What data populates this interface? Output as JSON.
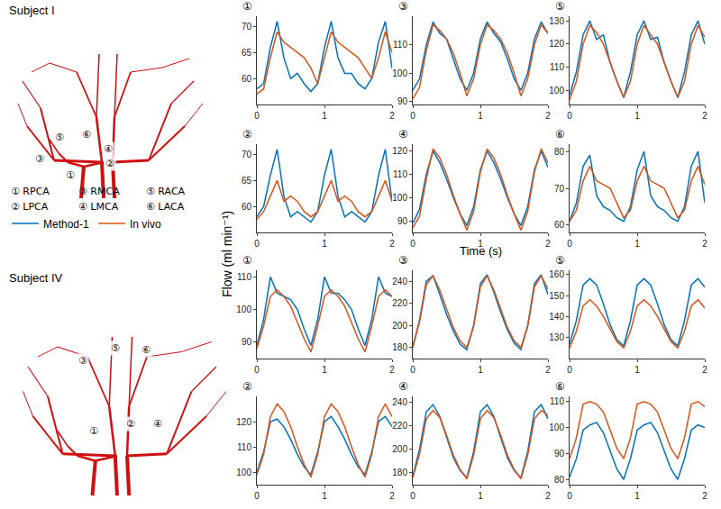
{
  "chart_data": [
    {
      "type": "line",
      "title": "①",
      "x": [
        0,
        0.1,
        0.2,
        0.3,
        0.4,
        0.5,
        0.6,
        0.7,
        0.8,
        0.9,
        1,
        1.1,
        1.2,
        1.3,
        1.4,
        1.5,
        1.6,
        1.7,
        1.8,
        1.9,
        2
      ],
      "xlim": [
        0,
        2
      ],
      "xticks": [
        0,
        1,
        2
      ],
      "ylim": [
        55,
        72
      ],
      "yticks": [
        60,
        65,
        70
      ],
      "grid": false,
      "series": [
        {
          "name": "Method-1",
          "color": "#0072BD",
          "values": [
            58,
            59,
            66,
            71,
            64,
            60,
            61,
            59,
            57.5,
            59,
            66,
            71,
            64,
            61,
            61,
            59,
            58,
            60,
            67,
            71,
            62
          ]
        },
        {
          "name": "In vivo",
          "color": "#D95319",
          "values": [
            57,
            58,
            64,
            69,
            67,
            66,
            65,
            64,
            62,
            59,
            64,
            69,
            67,
            66,
            65,
            64,
            62,
            60,
            64,
            69,
            65
          ]
        }
      ]
    },
    {
      "type": "line",
      "title": "②",
      "x": [
        0,
        0.1,
        0.2,
        0.3,
        0.4,
        0.5,
        0.6,
        0.7,
        0.8,
        0.9,
        1,
        1.1,
        1.2,
        1.3,
        1.4,
        1.5,
        1.6,
        1.7,
        1.8,
        1.9,
        2
      ],
      "xlim": [
        0,
        2
      ],
      "xticks": [
        0,
        1,
        2
      ],
      "ylim": [
        55,
        72
      ],
      "yticks": [
        60,
        65,
        70
      ],
      "grid": false,
      "series": [
        {
          "name": "Method-1",
          "color": "#0072BD",
          "values": [
            58,
            60,
            66,
            71,
            62,
            58,
            59,
            58,
            57,
            59,
            66,
            71,
            62,
            58,
            59,
            58,
            57,
            59,
            66,
            71,
            61
          ]
        },
        {
          "name": "In vivo",
          "color": "#D95319",
          "values": [
            57.5,
            59,
            62,
            65,
            61,
            62,
            61,
            59,
            58,
            59,
            62,
            65,
            61,
            62,
            61,
            59,
            58,
            59,
            62,
            65,
            61
          ]
        }
      ]
    },
    {
      "type": "line",
      "title": "③",
      "x": [
        0,
        0.1,
        0.2,
        0.3,
        0.4,
        0.5,
        0.6,
        0.7,
        0.8,
        0.9,
        1,
        1.1,
        1.2,
        1.3,
        1.4,
        1.5,
        1.6,
        1.7,
        1.8,
        1.9,
        2
      ],
      "xlim": [
        0,
        2
      ],
      "xticks": [
        0,
        1,
        2
      ],
      "ylim": [
        89,
        120
      ],
      "yticks": [
        90,
        100,
        110
      ],
      "grid": false,
      "series": [
        {
          "name": "Method-1",
          "color": "#0072BD",
          "values": [
            94,
            98,
            110,
            118,
            114,
            112,
            105,
            98,
            94,
            100,
            112,
            118,
            114,
            111,
            105,
            98,
            94,
            100,
            112,
            118,
            114
          ]
        },
        {
          "name": "In vivo",
          "color": "#D95319",
          "values": [
            91,
            95,
            108,
            117,
            115,
            112,
            107,
            100,
            92,
            98,
            110,
            117,
            115,
            112,
            107,
            100,
            92,
            98,
            110,
            117,
            114
          ]
        }
      ]
    },
    {
      "type": "line",
      "title": "④",
      "x": [
        0,
        0.1,
        0.2,
        0.3,
        0.4,
        0.5,
        0.6,
        0.7,
        0.8,
        0.9,
        1,
        1.1,
        1.2,
        1.3,
        1.4,
        1.5,
        1.6,
        1.7,
        1.8,
        1.9,
        2
      ],
      "xlim": [
        0,
        2
      ],
      "xticks": [
        0,
        1,
        2
      ],
      "ylim": [
        85,
        123
      ],
      "yticks": [
        90,
        100,
        110,
        120
      ],
      "grid": false,
      "series": [
        {
          "name": "Method-1",
          "color": "#0072BD",
          "values": [
            89,
            95,
            110,
            120,
            115,
            108,
            100,
            93,
            88,
            96,
            112,
            120,
            115,
            108,
            100,
            93,
            88,
            96,
            112,
            120,
            113
          ]
        },
        {
          "name": "In vivo",
          "color": "#D95319",
          "values": [
            87,
            92,
            108,
            121,
            117,
            110,
            101,
            93,
            86,
            94,
            111,
            121,
            117,
            110,
            101,
            93,
            86,
            94,
            111,
            121,
            115
          ]
        }
      ]
    },
    {
      "type": "line",
      "title": "⑤",
      "x": [
        0,
        0.1,
        0.2,
        0.3,
        0.4,
        0.5,
        0.6,
        0.7,
        0.8,
        0.9,
        1,
        1.1,
        1.2,
        1.3,
        1.4,
        1.5,
        1.6,
        1.7,
        1.8,
        1.9,
        2
      ],
      "xlim": [
        0,
        2
      ],
      "xticks": [
        0,
        1,
        2
      ],
      "ylim": [
        94,
        132
      ],
      "yticks": [
        100,
        110,
        120,
        130
      ],
      "grid": false,
      "series": [
        {
          "name": "Method-1",
          "color": "#0072BD",
          "values": [
            98,
            108,
            124,
            130,
            122,
            124,
            112,
            104,
            97,
            108,
            124,
            130,
            122,
            123,
            112,
            104,
            97,
            108,
            124,
            130,
            120
          ]
        },
        {
          "name": "In vivo",
          "color": "#D95319",
          "values": [
            96,
            104,
            120,
            128,
            125,
            120,
            112,
            104,
            97,
            104,
            120,
            128,
            124,
            120,
            112,
            104,
            97,
            104,
            120,
            128,
            123
          ]
        }
      ]
    },
    {
      "type": "line",
      "title": "⑥",
      "x": [
        0,
        0.1,
        0.2,
        0.3,
        0.4,
        0.5,
        0.6,
        0.7,
        0.8,
        0.9,
        1,
        1.1,
        1.2,
        1.3,
        1.4,
        1.5,
        1.6,
        1.7,
        1.8,
        1.9,
        2
      ],
      "xlim": [
        0,
        2
      ],
      "xticks": [
        0,
        1,
        2
      ],
      "ylim": [
        58,
        82
      ],
      "yticks": [
        60,
        70,
        80
      ],
      "grid": false,
      "series": [
        {
          "name": "Method-1",
          "color": "#0072BD",
          "values": [
            61,
            66,
            76,
            79,
            68,
            65,
            64,
            62,
            61,
            65,
            75,
            80,
            68,
            65,
            64,
            62,
            61,
            65,
            76,
            80,
            66
          ]
        },
        {
          "name": "In vivo",
          "color": "#D95319",
          "values": [
            61,
            64,
            72,
            76,
            72,
            71,
            70,
            66,
            62,
            64,
            72,
            76,
            72,
            71,
            70,
            66,
            62,
            64,
            72,
            76,
            71
          ]
        }
      ]
    },
    {
      "type": "line",
      "title": "①",
      "x": [
        0,
        0.1,
        0.2,
        0.3,
        0.4,
        0.5,
        0.6,
        0.7,
        0.8,
        0.9,
        1,
        1.1,
        1.2,
        1.3,
        1.4,
        1.5,
        1.6,
        1.7,
        1.8,
        1.9,
        2
      ],
      "xlim": [
        0,
        2
      ],
      "xticks": [
        0,
        1,
        2
      ],
      "ylim": [
        85,
        112
      ],
      "yticks": [
        90,
        100,
        110
      ],
      "grid": false,
      "series": [
        {
          "name": "Method-1",
          "color": "#0072BD",
          "values": [
            89,
            97,
            110,
            105,
            104,
            103,
            100,
            94,
            89,
            97,
            110,
            105,
            105,
            103,
            100,
            94,
            89,
            97,
            110,
            105,
            104
          ]
        },
        {
          "name": "In vivo",
          "color": "#D95319",
          "values": [
            88,
            95,
            104,
            106,
            104,
            101,
            96,
            91,
            87,
            95,
            104,
            106,
            104,
            101,
            96,
            91,
            87,
            95,
            104,
            106,
            104
          ]
        }
      ]
    },
    {
      "type": "line",
      "title": "②",
      "x": [
        0,
        0.1,
        0.2,
        0.3,
        0.4,
        0.5,
        0.6,
        0.7,
        0.8,
        0.9,
        1,
        1.1,
        1.2,
        1.3,
        1.4,
        1.5,
        1.6,
        1.7,
        1.8,
        1.9,
        2
      ],
      "xlim": [
        0,
        2
      ],
      "xticks": [
        0,
        1,
        2
      ],
      "ylim": [
        95,
        130
      ],
      "yticks": [
        100,
        110,
        120
      ],
      "grid": false,
      "series": [
        {
          "name": "Method-1",
          "color": "#0072BD",
          "values": [
            100,
            108,
            120,
            121,
            118,
            113,
            107,
            102,
            99,
            108,
            120,
            122,
            118,
            113,
            107,
            102,
            99,
            108,
            120,
            122,
            118
          ]
        },
        {
          "name": "In vivo",
          "color": "#D95319",
          "values": [
            99,
            107,
            122,
            127,
            124,
            118,
            110,
            103,
            98,
            107,
            122,
            127,
            124,
            118,
            110,
            103,
            98,
            107,
            122,
            127,
            122
          ]
        }
      ]
    },
    {
      "type": "line",
      "title": "③",
      "x": [
        0,
        0.1,
        0.2,
        0.3,
        0.4,
        0.5,
        0.6,
        0.7,
        0.8,
        0.9,
        1,
        1.1,
        1.2,
        1.3,
        1.4,
        1.5,
        1.6,
        1.7,
        1.8,
        1.9,
        2
      ],
      "xlim": [
        0,
        2
      ],
      "xticks": [
        0,
        1,
        2
      ],
      "ylim": [
        170,
        250
      ],
      "yticks": [
        180,
        200,
        220,
        240
      ],
      "grid": false,
      "series": [
        {
          "name": "Method-1",
          "color": "#0072BD",
          "values": [
            180,
            205,
            240,
            245,
            228,
            210,
            195,
            183,
            178,
            200,
            238,
            246,
            230,
            212,
            196,
            184,
            178,
            200,
            238,
            246,
            228
          ]
        },
        {
          "name": "In vivo",
          "color": "#D95319",
          "values": [
            181,
            203,
            237,
            245,
            232,
            215,
            198,
            186,
            180,
            199,
            235,
            245,
            232,
            215,
            198,
            186,
            180,
            199,
            235,
            245,
            233
          ]
        }
      ]
    },
    {
      "type": "line",
      "title": "④",
      "x": [
        0,
        0.1,
        0.2,
        0.3,
        0.4,
        0.5,
        0.6,
        0.7,
        0.8,
        0.9,
        1,
        1.1,
        1.2,
        1.3,
        1.4,
        1.5,
        1.6,
        1.7,
        1.8,
        1.9,
        2
      ],
      "xlim": [
        0,
        2
      ],
      "xticks": [
        0,
        1,
        2
      ],
      "ylim": [
        170,
        245
      ],
      "yticks": [
        180,
        200,
        220,
        240
      ],
      "grid": false,
      "series": [
        {
          "name": "Method-1",
          "color": "#0072BD",
          "values": [
            177,
            200,
            232,
            238,
            228,
            210,
            193,
            182,
            176,
            198,
            232,
            238,
            228,
            210,
            193,
            182,
            176,
            198,
            232,
            238,
            226
          ]
        },
        {
          "name": "In vivo",
          "color": "#D95319",
          "values": [
            176,
            196,
            226,
            233,
            227,
            212,
            195,
            183,
            175,
            195,
            226,
            233,
            227,
            212,
            195,
            183,
            175,
            195,
            226,
            233,
            229
          ]
        }
      ]
    },
    {
      "type": "line",
      "title": "⑤",
      "x": [
        0,
        0.1,
        0.2,
        0.3,
        0.4,
        0.5,
        0.6,
        0.7,
        0.8,
        0.9,
        1,
        1.1,
        1.2,
        1.3,
        1.4,
        1.5,
        1.6,
        1.7,
        1.8,
        1.9,
        2
      ],
      "xlim": [
        0,
        2
      ],
      "xticks": [
        0,
        1,
        2
      ],
      "ylim": [
        120,
        162
      ],
      "yticks": [
        130,
        140,
        150,
        160
      ],
      "grid": false,
      "series": [
        {
          "name": "Method-1",
          "color": "#0072BD",
          "values": [
            127,
            138,
            155,
            158,
            155,
            146,
            136,
            129,
            126,
            138,
            155,
            158,
            155,
            146,
            136,
            129,
            126,
            138,
            155,
            158,
            154
          ]
        },
        {
          "name": "In vivo",
          "color": "#D95319",
          "values": [
            125,
            133,
            145,
            148,
            145,
            140,
            134,
            128,
            125,
            133,
            145,
            148,
            145,
            140,
            134,
            128,
            125,
            133,
            145,
            148,
            144
          ]
        }
      ]
    },
    {
      "type": "line",
      "title": "⑥",
      "x": [
        0,
        0.1,
        0.2,
        0.3,
        0.4,
        0.5,
        0.6,
        0.7,
        0.8,
        0.9,
        1,
        1.1,
        1.2,
        1.3,
        1.4,
        1.5,
        1.6,
        1.7,
        1.8,
        1.9,
        2
      ],
      "xlim": [
        0,
        2
      ],
      "xticks": [
        0,
        1,
        2
      ],
      "ylim": [
        78,
        112
      ],
      "yticks": [
        80,
        90,
        100,
        110
      ],
      "grid": false,
      "series": [
        {
          "name": "Method-1",
          "color": "#0072BD",
          "values": [
            81,
            88,
            99,
            101,
            102,
            98,
            91,
            84,
            80,
            88,
            99,
            101,
            102,
            98,
            91,
            84,
            80,
            88,
            99,
            101,
            100
          ]
        },
        {
          "name": "In vivo",
          "color": "#D95319",
          "values": [
            88,
            96,
            109,
            110,
            109,
            106,
            99,
            92,
            88,
            96,
            109,
            110,
            109,
            106,
            99,
            92,
            88,
            96,
            109,
            110,
            108
          ]
        }
      ]
    }
  ],
  "axis_labels": {
    "x": "Time (s)",
    "y": "Flow (ml min⁻¹)"
  },
  "subjects": [
    {
      "title": "Subject I",
      "labels": [
        "①",
        "②",
        "③",
        "④",
        "⑤",
        "⑥"
      ]
    },
    {
      "title": "Subject IV",
      "labels": [
        "①",
        "②",
        "③",
        "④",
        "⑤",
        "⑥"
      ]
    }
  ],
  "key": [
    "① RPCA",
    "② LPCA",
    "③ RMCA",
    "④ LMCA",
    "⑤ RACA",
    "⑥ LACA"
  ]
}
